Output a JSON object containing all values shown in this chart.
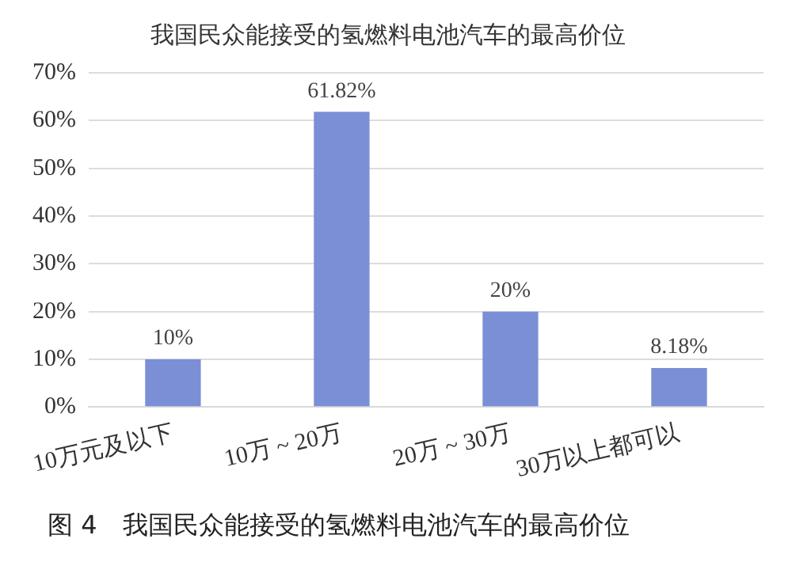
{
  "chart_data": {
    "type": "bar",
    "title": "我国民众能接受的氢燃料电池汽车的最高价位",
    "categories": [
      "10万元及以下",
      "10万 ~ 20万",
      "20万 ~ 30万",
      "30万以上都可以"
    ],
    "values": [
      10,
      61.82,
      20,
      8.18
    ],
    "value_labels": [
      "10%",
      "61.82%",
      "20%",
      "8.18%"
    ],
    "color": "#7a8fd6",
    "ylim": [
      0,
      70
    ],
    "yticks": [
      {
        "value": 0,
        "label": "0%"
      },
      {
        "value": 10,
        "label": "10%"
      },
      {
        "value": 20,
        "label": "20%"
      },
      {
        "value": 30,
        "label": "30%"
      },
      {
        "value": 40,
        "label": "40%"
      },
      {
        "value": 50,
        "label": "50%"
      },
      {
        "value": 60,
        "label": "60%"
      },
      {
        "value": 70,
        "label": "70%"
      }
    ],
    "grid": "y",
    "legend": false,
    "annotations": [
      "图 4　我国民众能接受的氢燃料电池汽车的最高价位"
    ]
  }
}
